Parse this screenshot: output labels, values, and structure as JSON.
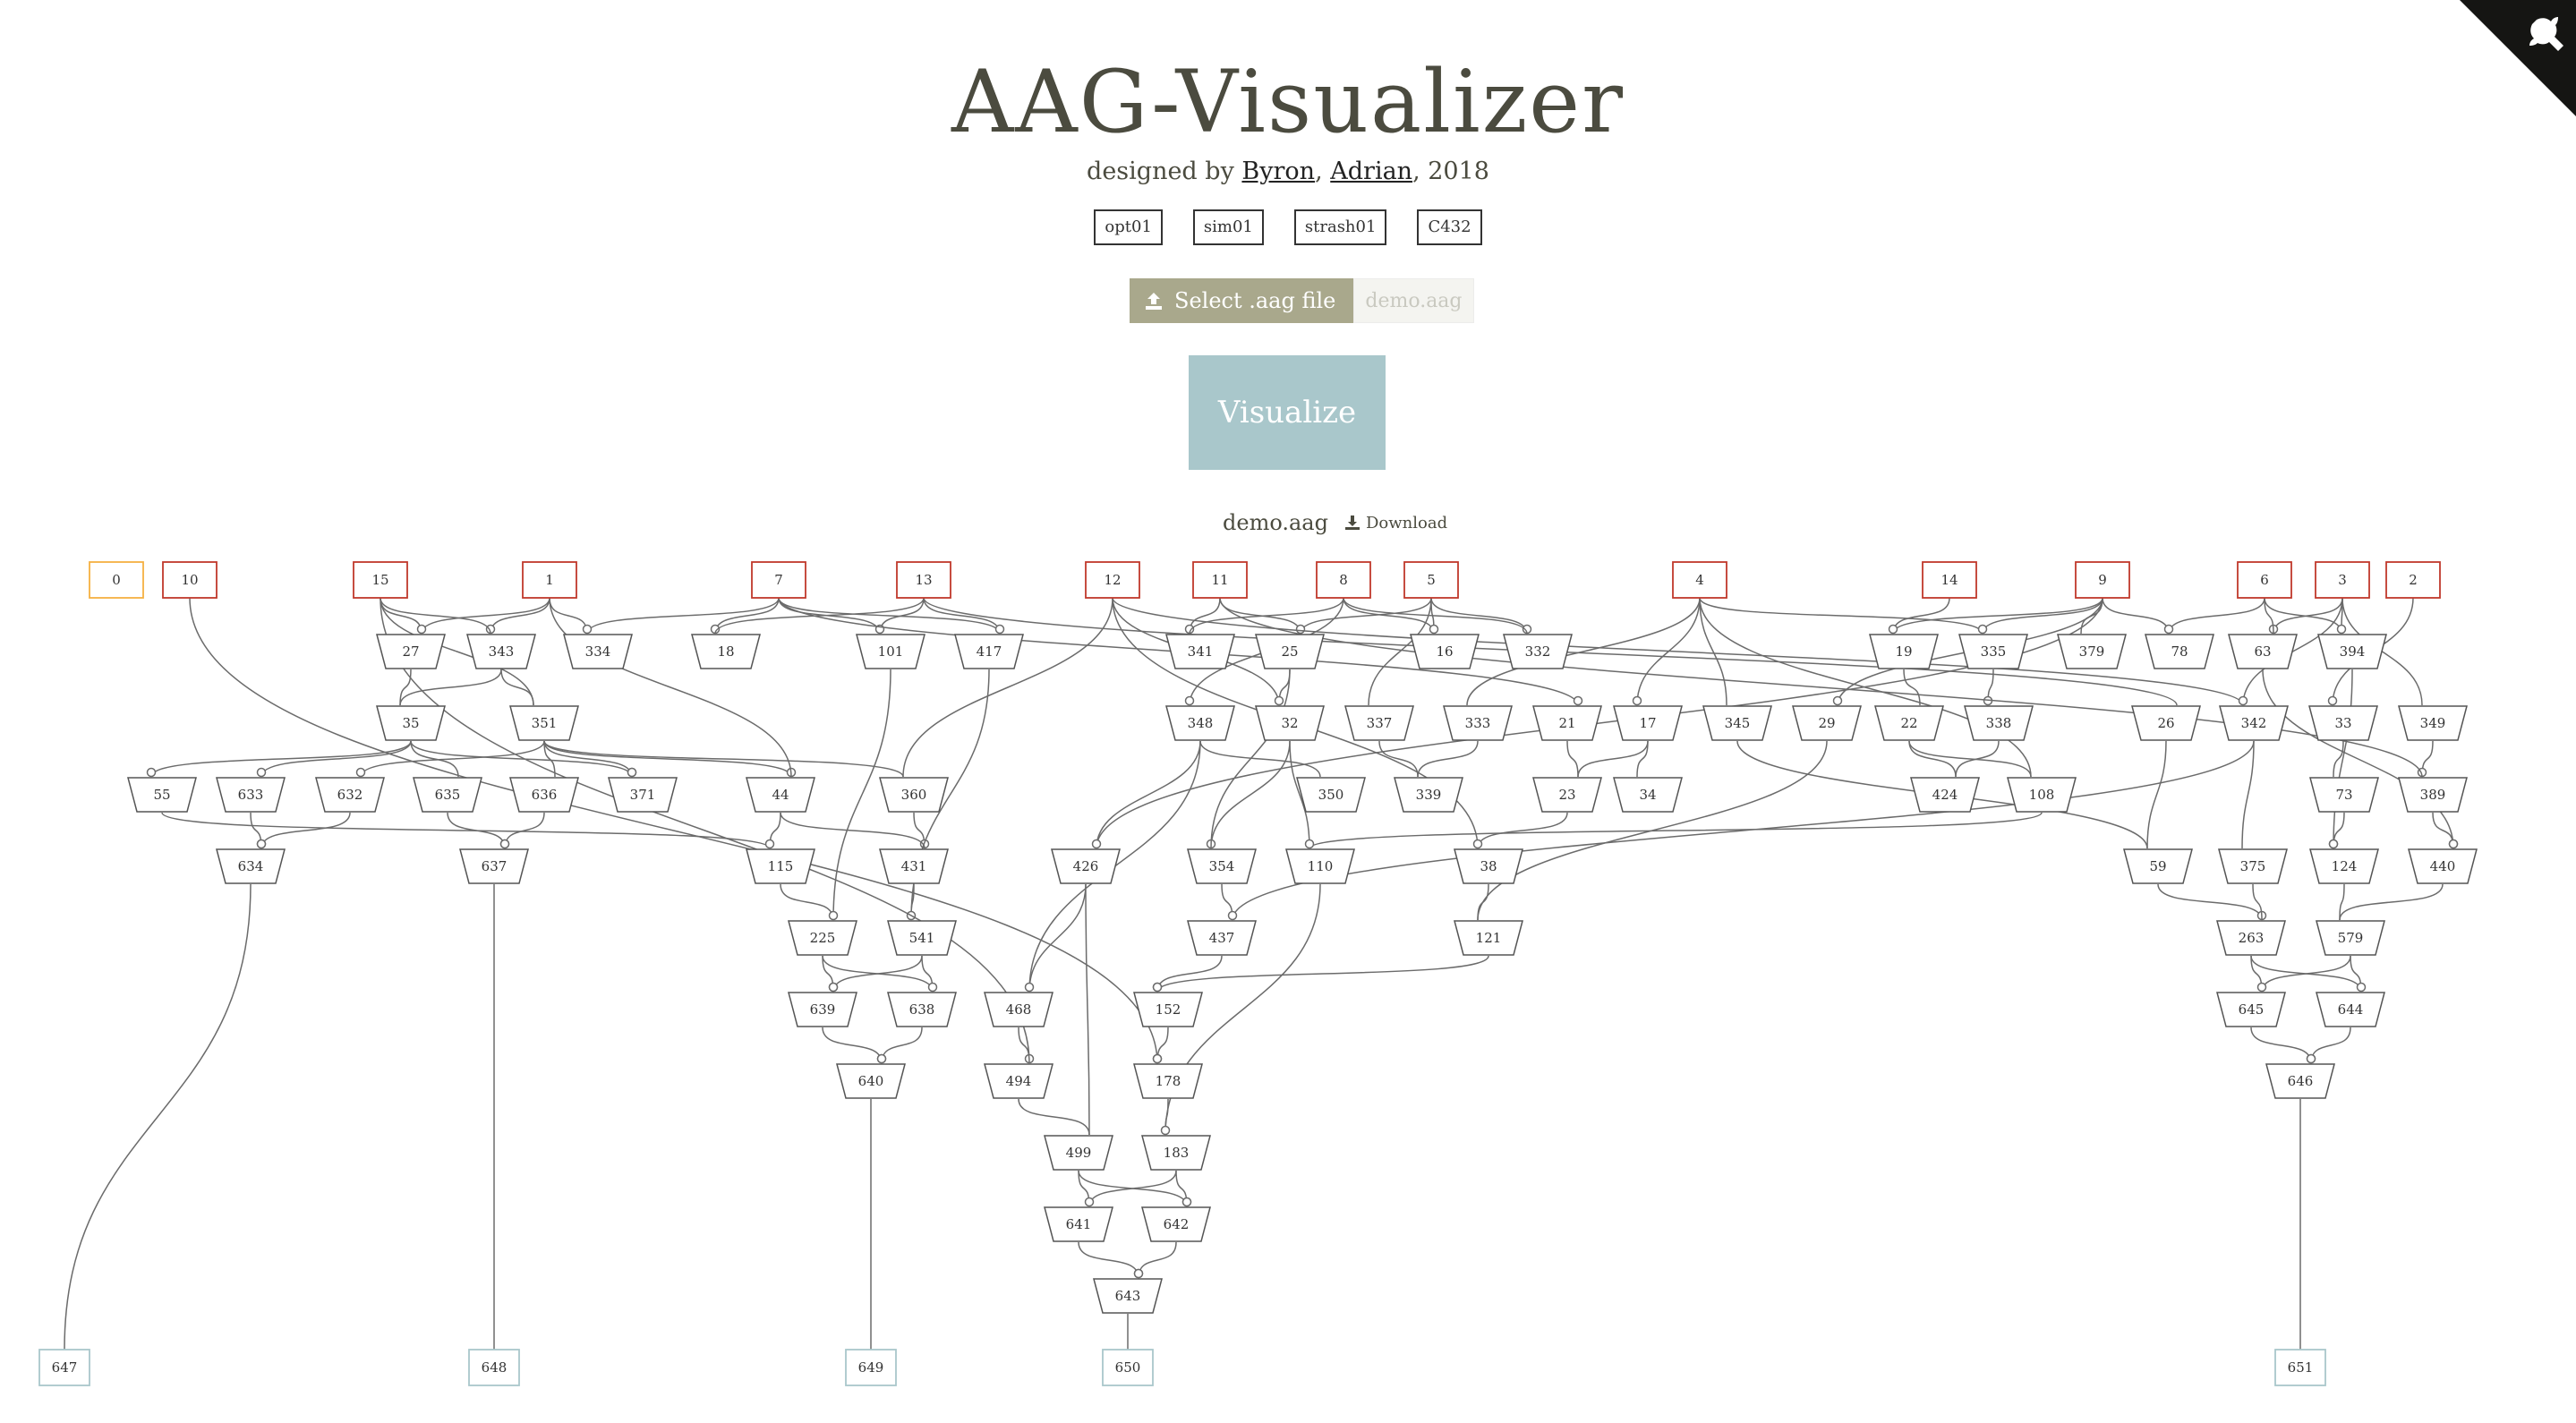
{
  "header": {
    "title": "AAG-Visualizer",
    "credits_prefix": "designed by ",
    "author1": "Byron",
    "credits_sep": ", ",
    "author2": "Adrian",
    "credits_suffix": ", 2018"
  },
  "examples": [
    "opt01",
    "sim01",
    "strash01",
    "C432"
  ],
  "file_select": {
    "button_label": "Select .aag file",
    "filename_placeholder": "demo.aag",
    "button_color": "#a9a88c"
  },
  "visualize": {
    "label": "Visualize",
    "color": "#a9c7cb"
  },
  "current_file": {
    "name": "demo.aag",
    "download_label": "Download"
  },
  "colors": {
    "input_border": "#c0392b",
    "const_border": "#f5b041",
    "output_border": "#a9c7cb",
    "edge": "#6b6b6b"
  },
  "graph": {
    "inputs": [
      "0",
      "10",
      "15",
      "1",
      "7",
      "13",
      "12",
      "11",
      "8",
      "5",
      "4",
      "14",
      "9",
      "6",
      "3",
      "2"
    ],
    "and_gates": [
      "27",
      "343",
      "334",
      "18",
      "101",
      "417",
      "341",
      "25",
      "16",
      "332",
      "19",
      "335",
      "379",
      "78",
      "63",
      "394",
      "35",
      "351",
      "348",
      "32",
      "337",
      "333",
      "21",
      "17",
      "345",
      "29",
      "22",
      "338",
      "26",
      "342",
      "33",
      "349",
      "55",
      "633",
      "632",
      "635",
      "636",
      "371",
      "44",
      "360",
      "350",
      "339",
      "23",
      "34",
      "424",
      "108",
      "73",
      "389",
      "634",
      "637",
      "115",
      "431",
      "426",
      "354",
      "110",
      "38",
      "59",
      "375",
      "124",
      "440",
      "225",
      "541",
      "437",
      "121",
      "263",
      "579",
      "639",
      "638",
      "468",
      "152",
      "645",
      "644",
      "640",
      "494",
      "178",
      "646",
      "499",
      "183",
      "641",
      "642",
      "643"
    ],
    "outputs": [
      "647",
      "648",
      "649",
      "650",
      "651"
    ]
  }
}
